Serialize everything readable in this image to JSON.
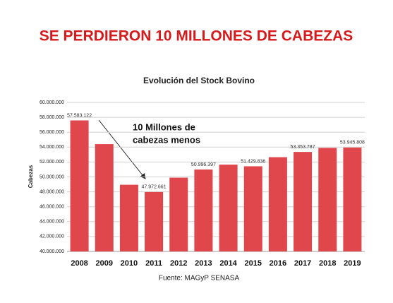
{
  "chart_data": {
    "type": "bar",
    "title": "SE PERDIERON 10 MILLONES DE CABEZAS",
    "subtitle": "Evolución del Stock Bovino",
    "y_label": "Cabezas",
    "source": "Fuente: MAGyP SENASA",
    "annotation": [
      "10 Millones de",
      "cabezas menos"
    ],
    "categories": [
      "2008",
      "2009",
      "2010",
      "2011",
      "2012",
      "2013",
      "2014",
      "2015",
      "2016",
      "2017",
      "2018",
      "2019"
    ],
    "values": [
      57583122,
      54400000,
      48950000,
      47972661,
      49900000,
      50996397,
      51650000,
      51429836,
      52650000,
      53353787,
      53900000,
      53945808
    ],
    "value_labels": [
      "57.583.122",
      null,
      null,
      "47.972.661",
      null,
      "50.996.397",
      null,
      "51.429.836",
      null,
      "53.353.787",
      null,
      "53.945.808"
    ],
    "color": "#e0474c",
    "ylim": [
      40000000,
      60000000
    ],
    "yticks": [
      {
        "value": 40000000,
        "label": "40.000.000"
      },
      {
        "value": 42000000,
        "label": "42.000.000"
      },
      {
        "value": 44000000,
        "label": "44.000.000"
      },
      {
        "value": 46000000,
        "label": "46.000.000"
      },
      {
        "value": 48000000,
        "label": "48.000.000"
      },
      {
        "value": 50000000,
        "label": "50.000.000"
      },
      {
        "value": 52000000,
        "label": "52.000.000"
      },
      {
        "value": 54000000,
        "label": "54.000.000"
      },
      {
        "value": 56000000,
        "label": "56.000.000"
      },
      {
        "value": 58000000,
        "label": "58.000.000"
      },
      {
        "value": 60000000,
        "label": "60.000.000"
      }
    ],
    "grid": true
  }
}
